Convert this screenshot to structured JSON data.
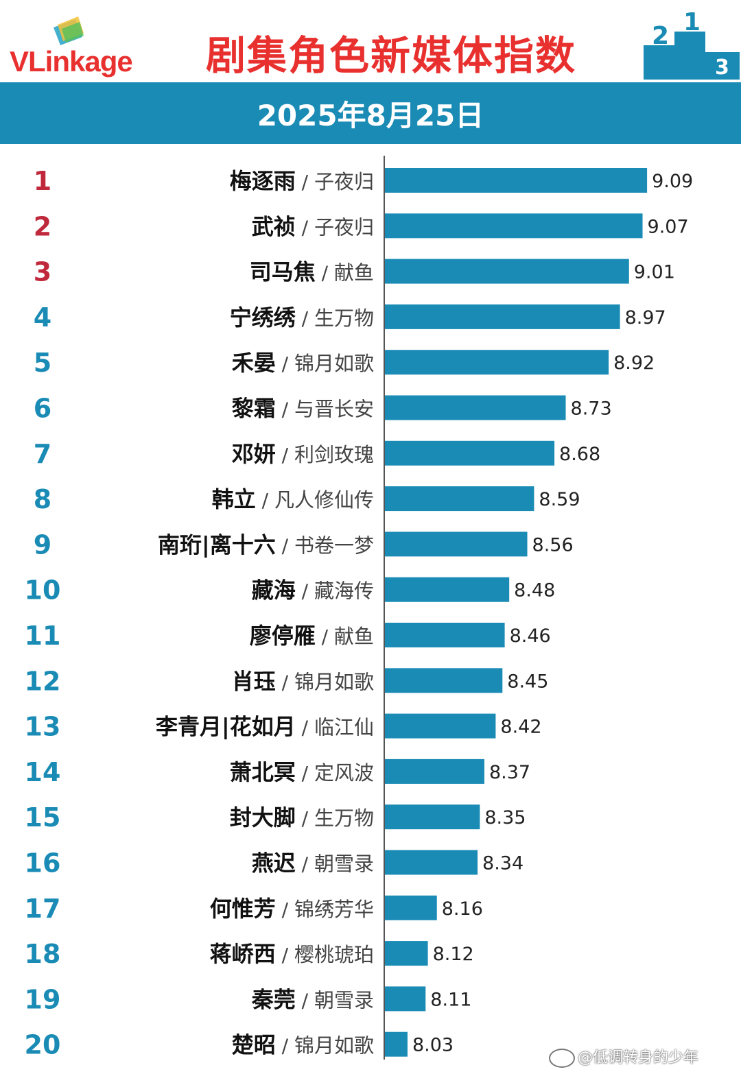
{
  "header": {
    "logo_text_v": "VL",
    "logo_text_rest": "inkage",
    "title": "剧集角色新媒体指数",
    "date": "2025年8月25日",
    "podium_labels": [
      "2",
      "1",
      "3"
    ]
  },
  "colors": {
    "bar": "#1a8bb5",
    "banner": "#1a8bb5",
    "title": "#e8312f",
    "rank_top3": "#c0283b",
    "rank_rest": "#1a8bb5"
  },
  "watermark": "@低调转身的少年",
  "chart_data": {
    "type": "bar",
    "orientation": "horizontal",
    "title": "剧集角色新媒体指数",
    "subtitle": "2025年8月25日",
    "ranks": [
      "1",
      "2",
      "3",
      "4",
      "5",
      "6",
      "7",
      "8",
      "9",
      "10",
      "11",
      "12",
      "13",
      "14",
      "15",
      "16",
      "17",
      "18",
      "19",
      "20"
    ],
    "characters": [
      "梅逐雨",
      "武祯",
      "司马焦",
      "宁绣绣",
      "禾晏",
      "黎霜",
      "邓妍",
      "韩立",
      "南珩|离十六",
      "藏海",
      "廖停雁",
      "肖珏",
      "李青月|花如月",
      "萧北冥",
      "封大脚",
      "燕迟",
      "何惟芳",
      "蒋峤西",
      "秦莞",
      "楚昭"
    ],
    "dramas": [
      "子夜归",
      "子夜归",
      "献鱼",
      "生万物",
      "锦月如歌",
      "与晋长安",
      "利剑玫瑰",
      "凡人修仙传",
      "书卷一梦",
      "藏海传",
      "献鱼",
      "锦月如歌",
      "临江仙",
      "定风波",
      "生万物",
      "朝雪录",
      "锦绣芳华",
      "樱桃琥珀",
      "朝雪录",
      "锦月如歌"
    ],
    "values": [
      9.09,
      9.07,
      9.01,
      8.97,
      8.92,
      8.73,
      8.68,
      8.59,
      8.56,
      8.48,
      8.46,
      8.45,
      8.42,
      8.37,
      8.35,
      8.34,
      8.16,
      8.12,
      8.11,
      8.03
    ],
    "value_labels": [
      "9.09",
      "9.07",
      "9.01",
      "8.97",
      "8.92",
      "8.73",
      "8.68",
      "8.59",
      "8.56",
      "8.48",
      "8.46",
      "8.45",
      "8.42",
      "8.37",
      "8.35",
      "8.34",
      "8.16",
      "8.12",
      "8.11",
      "8.03"
    ],
    "separator": "/",
    "xlim": [
      7.93,
      9.12
    ],
    "grid": false,
    "legend": "none"
  }
}
